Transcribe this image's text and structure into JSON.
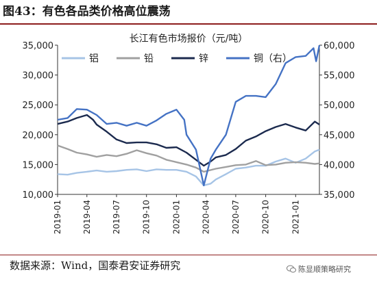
{
  "header": {
    "title": "图43：有色各品类价格高位震荡"
  },
  "footer": {
    "source": "数据来源：Wind，国泰君安证券研究",
    "watermark": "陈显顺策略研究",
    "watermark_icon": "wechat-icon"
  },
  "chart_data": {
    "type": "line",
    "title": "长江有色市场报价（元/吨）",
    "xlabel": "",
    "ylabel": "",
    "ylim": [
      10000,
      35000
    ],
    "y2lim": [
      35000,
      60000
    ],
    "yticks": [
      "35,000",
      "30,000",
      "25,000",
      "20,000",
      "15,000",
      "10,000"
    ],
    "y2ticks": [
      "60,000",
      "55,000",
      "50,000",
      "45,000",
      "40,000",
      "35,000"
    ],
    "xticks": [
      "2019-01",
      "2019-04",
      "2019-07",
      "2019-10",
      "2020-01",
      "2020-04",
      "2020-07",
      "2020-10",
      "2021-01"
    ],
    "xrange": [
      "2019-01-01",
      "2021-03-15"
    ],
    "grid": false,
    "legend": "top",
    "series": [
      {
        "name": "铝",
        "axis": "left",
        "color": "#a6c4e6",
        "points": [
          [
            "2019-01-01",
            13400
          ],
          [
            "2019-02-01",
            13300
          ],
          [
            "2019-03-01",
            13600
          ],
          [
            "2019-04-01",
            13800
          ],
          [
            "2019-05-01",
            14000
          ],
          [
            "2019-06-01",
            13800
          ],
          [
            "2019-07-01",
            13900
          ],
          [
            "2019-08-01",
            14100
          ],
          [
            "2019-09-01",
            14200
          ],
          [
            "2019-10-01",
            13900
          ],
          [
            "2019-11-01",
            14200
          ],
          [
            "2019-12-01",
            14100
          ],
          [
            "2020-01-01",
            14100
          ],
          [
            "2020-02-01",
            13800
          ],
          [
            "2020-03-01",
            13000
          ],
          [
            "2020-03-25",
            11500
          ],
          [
            "2020-04-15",
            11800
          ],
          [
            "2020-05-01",
            12500
          ],
          [
            "2020-06-01",
            13400
          ],
          [
            "2020-07-01",
            14300
          ],
          [
            "2020-08-01",
            14500
          ],
          [
            "2020-09-01",
            14800
          ],
          [
            "2020-10-01",
            14800
          ],
          [
            "2020-11-01",
            15500
          ],
          [
            "2020-12-01",
            16000
          ],
          [
            "2021-01-01",
            15300
          ],
          [
            "2021-02-01",
            16000
          ],
          [
            "2021-03-01",
            17200
          ],
          [
            "2021-03-15",
            17500
          ]
        ]
      },
      {
        "name": "铅",
        "axis": "left",
        "color": "#a0a0a0",
        "points": [
          [
            "2019-01-01",
            18200
          ],
          [
            "2019-02-01",
            17600
          ],
          [
            "2019-03-01",
            17000
          ],
          [
            "2019-04-01",
            16700
          ],
          [
            "2019-05-01",
            16300
          ],
          [
            "2019-06-01",
            16600
          ],
          [
            "2019-07-01",
            16400
          ],
          [
            "2019-08-01",
            16800
          ],
          [
            "2019-09-01",
            17400
          ],
          [
            "2019-10-01",
            16900
          ],
          [
            "2019-11-01",
            16500
          ],
          [
            "2019-12-01",
            15800
          ],
          [
            "2020-01-01",
            15400
          ],
          [
            "2020-02-01",
            15000
          ],
          [
            "2020-03-01",
            14500
          ],
          [
            "2020-03-25",
            13800
          ],
          [
            "2020-05-01",
            14300
          ],
          [
            "2020-06-01",
            14600
          ],
          [
            "2020-07-01",
            14900
          ],
          [
            "2020-08-01",
            15000
          ],
          [
            "2020-09-01",
            15600
          ],
          [
            "2020-10-01",
            14900
          ],
          [
            "2020-11-01",
            15000
          ],
          [
            "2020-12-01",
            15300
          ],
          [
            "2021-01-01",
            15400
          ],
          [
            "2021-02-01",
            15300
          ],
          [
            "2021-03-01",
            15100
          ],
          [
            "2021-03-15",
            15200
          ]
        ]
      },
      {
        "name": "锌",
        "axis": "left",
        "color": "#1b2a4e",
        "points": [
          [
            "2019-01-01",
            21800
          ],
          [
            "2019-02-01",
            22200
          ],
          [
            "2019-03-01",
            22800
          ],
          [
            "2019-04-01",
            23300
          ],
          [
            "2019-04-20",
            22500
          ],
          [
            "2019-05-01",
            21700
          ],
          [
            "2019-06-01",
            20500
          ],
          [
            "2019-07-01",
            19200
          ],
          [
            "2019-08-01",
            18600
          ],
          [
            "2019-09-01",
            18700
          ],
          [
            "2019-10-01",
            18700
          ],
          [
            "2019-11-01",
            18400
          ],
          [
            "2019-12-01",
            17800
          ],
          [
            "2020-01-01",
            17900
          ],
          [
            "2020-02-01",
            17000
          ],
          [
            "2020-03-01",
            15800
          ],
          [
            "2020-03-25",
            14800
          ],
          [
            "2020-04-15",
            15500
          ],
          [
            "2020-05-01",
            16200
          ],
          [
            "2020-06-01",
            16600
          ],
          [
            "2020-07-01",
            17600
          ],
          [
            "2020-08-01",
            19000
          ],
          [
            "2020-09-01",
            19700
          ],
          [
            "2020-10-01",
            20600
          ],
          [
            "2020-11-01",
            21300
          ],
          [
            "2020-12-01",
            21800
          ],
          [
            "2021-01-01",
            21200
          ],
          [
            "2021-02-01",
            20700
          ],
          [
            "2021-03-01",
            22200
          ],
          [
            "2021-03-15",
            21700
          ]
        ]
      },
      {
        "name": "铜（右）",
        "axis": "right",
        "color": "#4472c4",
        "points": [
          [
            "2019-01-01",
            47500
          ],
          [
            "2019-02-01",
            47800
          ],
          [
            "2019-03-01",
            49300
          ],
          [
            "2019-04-01",
            49200
          ],
          [
            "2019-05-01",
            48300
          ],
          [
            "2019-06-01",
            46800
          ],
          [
            "2019-07-01",
            47000
          ],
          [
            "2019-08-01",
            46500
          ],
          [
            "2019-09-01",
            47000
          ],
          [
            "2019-10-01",
            46500
          ],
          [
            "2019-11-01",
            47400
          ],
          [
            "2019-12-01",
            48500
          ],
          [
            "2020-01-01",
            49200
          ],
          [
            "2020-01-25",
            47500
          ],
          [
            "2020-02-01",
            45000
          ],
          [
            "2020-03-01",
            42500
          ],
          [
            "2020-03-25",
            36500
          ],
          [
            "2020-04-15",
            41000
          ],
          [
            "2020-05-01",
            42500
          ],
          [
            "2020-06-01",
            45000
          ],
          [
            "2020-07-01",
            50500
          ],
          [
            "2020-08-01",
            51500
          ],
          [
            "2020-09-01",
            51500
          ],
          [
            "2020-10-01",
            51300
          ],
          [
            "2020-11-01",
            53500
          ],
          [
            "2020-12-01",
            57000
          ],
          [
            "2021-01-01",
            58000
          ],
          [
            "2021-02-01",
            58200
          ],
          [
            "2021-02-25",
            59500
          ],
          [
            "2021-03-05",
            57300
          ],
          [
            "2021-03-15",
            60000
          ]
        ]
      }
    ]
  }
}
